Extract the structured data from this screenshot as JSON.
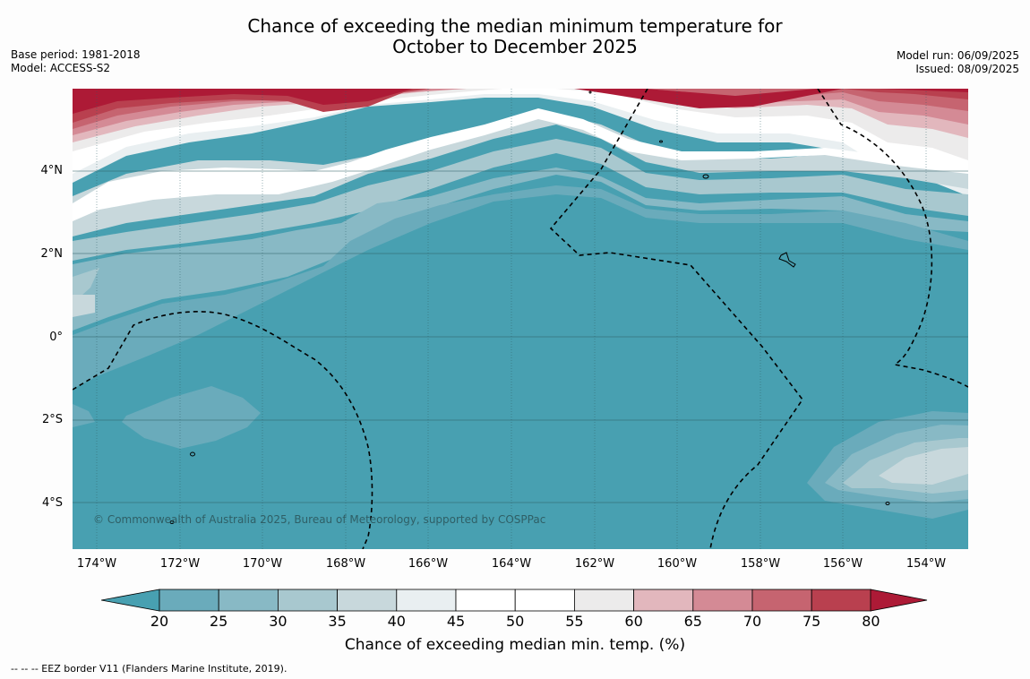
{
  "title_line1": "Chance of exceeding the median minimum temperature for",
  "title_line2": "October to December 2025",
  "base_period": "Base period: 1981-2018",
  "model": "Model: ACCESS-S2",
  "model_run": "Model run: 06/09/2025",
  "issued": "Issued: 08/09/2025",
  "latitudes": [
    "4°N",
    "2°N",
    "0°",
    "2°S",
    "4°S"
  ],
  "longitudes": [
    "174°W",
    "172°W",
    "170°W",
    "168°W",
    "166°W",
    "164°W",
    "162°W",
    "160°W",
    "158°W",
    "156°W",
    "154°W"
  ],
  "copyright": "© Commonwealth of Australia 2025, Bureau of Meteorology, supported by COSPPac",
  "colorbar": {
    "ticks": [
      "20",
      "25",
      "30",
      "35",
      "40",
      "45",
      "50",
      "55",
      "60",
      "65",
      "70",
      "75",
      "80"
    ],
    "colors": [
      "#6aabbb",
      "#88b9c5",
      "#a8c8cf",
      "#c8d8dc",
      "#e9eff1",
      "#ffffff",
      "#ffffff",
      "#ecebeb",
      "#e2b7bd",
      "#d48a95",
      "#c66470",
      "#b9404f"
    ],
    "low_extend_color": "#48a0b1",
    "high_extend_color": "#ad1a36",
    "label": "Chance of exceeding median min. temp. (%)"
  },
  "footnote": "--  --  -- EEZ border V11 (Flanders Marine Institute, 2019)."
}
